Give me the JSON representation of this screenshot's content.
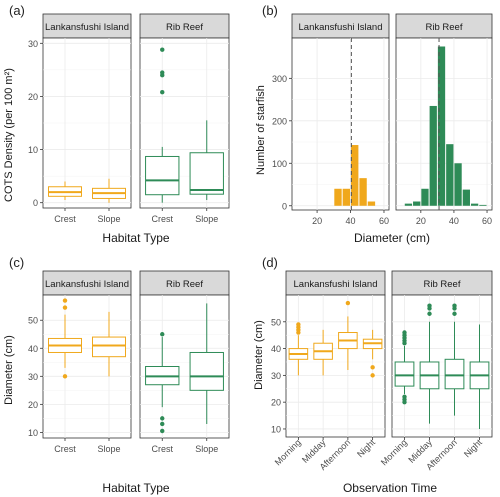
{
  "colors": {
    "orange": "#F0A81C",
    "green": "#2E8B57",
    "strip_bg": "#D9D9D9",
    "grid": "#EBEBEB",
    "axis": "#333333"
  },
  "chart_data": [
    {
      "panel_label": "(a)",
      "type": "box",
      "ylabel": "COTS Density (per 100 m²)",
      "xlabel": "Habitat Type",
      "ylim": [
        -1,
        31
      ],
      "yticks": [
        0,
        10,
        20,
        30
      ],
      "ytick_labels": [
        "0",
        "10",
        "20",
        "30"
      ],
      "facets": [
        {
          "name": "Lankansfushi Island",
          "color": "orange",
          "categories": [
            "Crest",
            "Slope"
          ],
          "boxes": [
            {
              "q1": 1.2,
              "median": 2.0,
              "q3": 3.0,
              "lo": 0.5,
              "hi": 4.0,
              "outliers": []
            },
            {
              "q1": 0.8,
              "median": 1.8,
              "q3": 2.7,
              "lo": 0.0,
              "hi": 4.5,
              "outliers": []
            }
          ]
        },
        {
          "name": "Rib Reef",
          "color": "green",
          "categories": [
            "Crest",
            "Slope"
          ],
          "boxes": [
            {
              "q1": 1.5,
              "median": 4.2,
              "q3": 8.7,
              "lo": 0.0,
              "hi": 10.5,
              "outliers": [
                20.8,
                24.0,
                24.5,
                28.8
              ]
            },
            {
              "q1": 1.6,
              "median": 2.4,
              "q3": 9.4,
              "lo": 0.5,
              "hi": 15.5,
              "outliers": []
            }
          ]
        }
      ]
    },
    {
      "panel_label": "(b)",
      "type": "bar",
      "ylabel": "Number of starfish",
      "xlabel": "Diameter (cm)",
      "xlim": [
        5,
        63
      ],
      "ylim": [
        -10,
        395
      ],
      "xticks": [
        20,
        40,
        60
      ],
      "xtick_labels": [
        "20",
        "40",
        "60"
      ],
      "yticks": [
        0,
        100,
        200,
        300
      ],
      "ytick_labels": [
        "0",
        "100",
        "200",
        "300"
      ],
      "facets": [
        {
          "name": "Lankansfushi Island",
          "color": "orange",
          "mean_line": 40.5,
          "bins": [
            {
              "x0": 30,
              "x1": 35,
              "count": 40
            },
            {
              "x0": 35,
              "x1": 40,
              "count": 40
            },
            {
              "x0": 40,
              "x1": 45,
              "count": 143
            },
            {
              "x0": 45,
              "x1": 50,
              "count": 65
            },
            {
              "x0": 50,
              "x1": 55,
              "count": 10
            }
          ]
        },
        {
          "name": "Rib Reef",
          "color": "green",
          "mean_line": 31,
          "bins": [
            {
              "x0": 10,
              "x1": 15,
              "count": 5
            },
            {
              "x0": 15,
              "x1": 20,
              "count": 10
            },
            {
              "x0": 20,
              "x1": 25,
              "count": 40
            },
            {
              "x0": 25,
              "x1": 30,
              "count": 235
            },
            {
              "x0": 30,
              "x1": 35,
              "count": 375
            },
            {
              "x0": 35,
              "x1": 40,
              "count": 145
            },
            {
              "x0": 40,
              "x1": 45,
              "count": 100
            },
            {
              "x0": 45,
              "x1": 50,
              "count": 38
            },
            {
              "x0": 50,
              "x1": 55,
              "count": 5
            },
            {
              "x0": 55,
              "x1": 60,
              "count": 2
            }
          ]
        }
      ]
    },
    {
      "panel_label": "(c)",
      "type": "box",
      "ylabel": "Diameter (cm)",
      "xlabel": "Habitat Type",
      "ylim": [
        8,
        59
      ],
      "yticks": [
        10,
        20,
        30,
        40,
        50
      ],
      "ytick_labels": [
        "10",
        "20",
        "30",
        "40",
        "50"
      ],
      "facets": [
        {
          "name": "Lankansfushi Island",
          "color": "orange",
          "categories": [
            "Crest",
            "Slope"
          ],
          "boxes": [
            {
              "q1": 38.5,
              "median": 41.0,
              "q3": 43.5,
              "lo": 33.0,
              "hi": 52.0,
              "outliers": [
                30.0,
                54.5,
                57.0
              ]
            },
            {
              "q1": 37.0,
              "median": 41.0,
              "q3": 44.0,
              "lo": 30.0,
              "hi": 53.0,
              "outliers": []
            }
          ]
        },
        {
          "name": "Rib Reef",
          "color": "green",
          "categories": [
            "Crest",
            "Slope"
          ],
          "boxes": [
            {
              "q1": 27.0,
              "median": 30.0,
              "q3": 33.5,
              "lo": 19.0,
              "hi": 44.0,
              "outliers": [
                10.5,
                13.0,
                15.0,
                45.0
              ]
            },
            {
              "q1": 25.0,
              "median": 30.0,
              "q3": 38.5,
              "lo": 13.0,
              "hi": 56.0,
              "outliers": []
            }
          ]
        }
      ]
    },
    {
      "panel_label": "(d)",
      "type": "box",
      "ylabel": "Diameter (cm)",
      "xlabel": "Observation Time",
      "ylim": [
        7,
        60
      ],
      "yticks": [
        10,
        20,
        30,
        40,
        50
      ],
      "ytick_labels": [
        "10",
        "20",
        "30",
        "40",
        "50"
      ],
      "facets": [
        {
          "name": "Lankansfushi Island",
          "color": "orange",
          "categories": [
            "Morning",
            "Midday",
            "Afternoon",
            "Night"
          ],
          "boxes": [
            {
              "q1": 36.0,
              "median": 38.0,
              "q3": 40.0,
              "lo": 30.0,
              "hi": 45.0,
              "outliers": [
                46.0,
                47.0,
                48.0,
                49.0
              ]
            },
            {
              "q1": 36.0,
              "median": 39.0,
              "q3": 42.0,
              "lo": 30.0,
              "hi": 47.0,
              "outliers": []
            },
            {
              "q1": 40.0,
              "median": 43.0,
              "q3": 46.0,
              "lo": 32.0,
              "hi": 52.0,
              "outliers": [
                57.0
              ]
            },
            {
              "q1": 40.0,
              "median": 42.0,
              "q3": 43.5,
              "lo": 36.0,
              "hi": 47.0,
              "outliers": [
                33.0,
                30.0
              ]
            }
          ]
        },
        {
          "name": "Rib Reef",
          "color": "green",
          "categories": [
            "Morning",
            "Midday",
            "Afternoon",
            "Night"
          ],
          "boxes": [
            {
              "q1": 26.0,
              "median": 30.0,
              "q3": 35.0,
              "lo": 23.0,
              "hi": 41.0,
              "outliers": [
                20.0,
                21.0,
                22.0,
                42.0,
                43.0,
                44.0,
                45.0,
                46.0
              ]
            },
            {
              "q1": 25.0,
              "median": 30.0,
              "q3": 35.0,
              "lo": 12.0,
              "hi": 50.0,
              "outliers": [
                53.0,
                55.0,
                56.0
              ]
            },
            {
              "q1": 25.0,
              "median": 30.0,
              "q3": 36.0,
              "lo": 15.0,
              "hi": 50.0,
              "outliers": [
                53.0,
                55.0,
                56.0
              ]
            },
            {
              "q1": 25.0,
              "median": 30.0,
              "q3": 35.0,
              "lo": 10.0,
              "hi": 49.0,
              "outliers": []
            }
          ]
        }
      ]
    }
  ]
}
